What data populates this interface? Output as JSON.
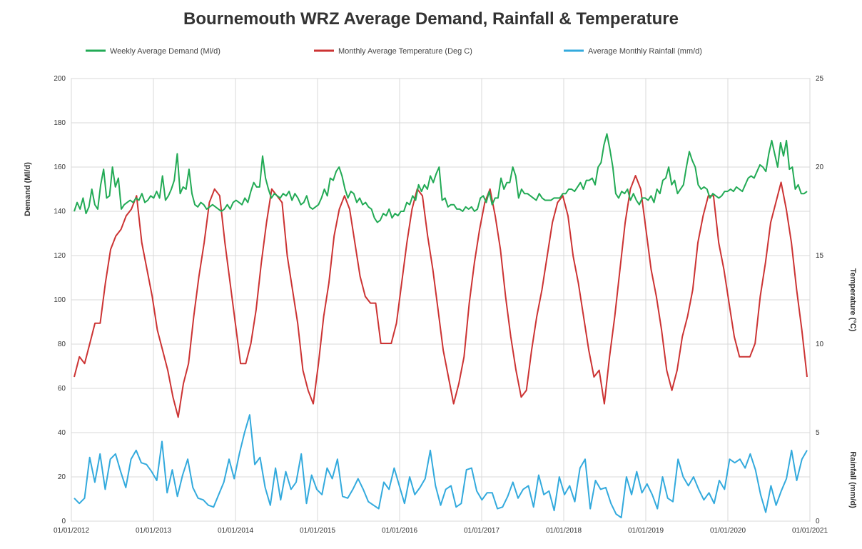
{
  "chart_data": {
    "type": "line",
    "title": "Bournemouth WRZ Average Demand, Rainfall & Temperature",
    "legend_position": "top",
    "grid": true,
    "x_ticks": [
      "01/01/2012",
      "01/01/2013",
      "01/01/2014",
      "01/01/2015",
      "01/01/2016",
      "01/01/2017",
      "01/01/2018",
      "01/01/2019",
      "01/01/2020",
      "01/01/2021"
    ],
    "y_left": {
      "label": "Demand (Ml/d)",
      "range": [
        0,
        200
      ],
      "ticks": [
        0,
        20,
        40,
        60,
        80,
        100,
        120,
        140,
        160,
        180,
        200
      ]
    },
    "y_right_temp": {
      "label": "Temperature (°C)",
      "range": [
        0,
        20
      ],
      "ticks": [
        5,
        10,
        15,
        20,
        25
      ]
    },
    "y_right_rain": {
      "label": "Rainfall (mm/d)",
      "range": [
        0,
        5
      ],
      "ticks": [
        0,
        5
      ]
    },
    "series": [
      {
        "name": "Weekly Average Demand (Ml/d)",
        "axis": "left",
        "color": "#22aa55",
        "values": [
          140,
          144,
          141,
          146,
          139,
          142,
          150,
          143,
          141,
          152,
          159,
          146,
          147,
          160,
          151,
          155,
          141,
          143,
          144,
          145,
          144,
          146,
          145,
          148,
          144,
          145,
          147,
          146,
          149,
          146,
          156,
          145,
          147,
          150,
          154,
          166,
          148,
          151,
          150,
          159,
          148,
          143,
          142,
          144,
          143,
          141,
          142,
          143,
          142,
          141,
          140,
          141,
          143,
          141,
          144,
          145,
          144,
          143,
          146,
          144,
          149,
          153,
          151,
          151,
          165,
          155,
          150,
          146,
          148,
          147,
          146,
          148,
          147,
          149,
          145,
          148,
          146,
          143,
          144,
          147,
          142,
          141,
          142,
          143,
          146,
          150,
          147,
          155,
          154,
          158,
          160,
          156,
          150,
          146,
          149,
          148,
          144,
          146,
          143,
          144,
          142,
          141,
          137,
          135,
          136,
          139,
          138,
          141,
          137,
          139,
          138,
          140,
          140,
          144,
          143,
          147,
          145,
          152,
          149,
          152,
          150,
          156,
          153,
          157,
          160,
          145,
          146,
          142,
          143,
          143,
          141,
          141,
          140,
          142,
          141,
          142,
          140,
          141,
          146,
          147,
          144,
          149,
          143,
          146,
          146,
          155,
          150,
          153,
          153,
          160,
          156,
          146,
          150,
          148,
          148,
          147,
          146,
          145,
          148,
          146,
          145,
          145,
          145,
          146,
          146,
          146,
          148,
          148,
          150,
          150,
          149,
          151,
          153,
          150,
          154,
          154,
          155,
          152,
          160,
          162,
          170,
          175,
          168,
          160,
          148,
          146,
          149,
          148,
          150,
          145,
          148,
          145,
          143,
          146,
          146,
          145,
          147,
          144,
          150,
          148,
          154,
          155,
          160,
          152,
          154,
          148,
          150,
          152,
          160,
          167,
          163,
          160,
          152,
          150,
          151,
          150,
          146,
          148,
          147,
          146,
          147,
          149,
          149,
          150,
          149,
          151,
          150,
          149,
          152,
          155,
          156,
          155,
          158,
          161,
          160,
          158,
          166,
          172,
          166,
          160,
          171,
          165,
          172,
          159,
          160,
          150,
          152,
          148,
          148,
          149
        ]
      },
      {
        "name": "Monthly Average Temperature (Deg C)",
        "axis": "right_temp",
        "color": "#cc3333",
        "values": [
          5.0,
          6.5,
          6.0,
          7.5,
          9.0,
          9.0,
          12.0,
          14.5,
          15.5,
          16.0,
          17.0,
          17.5,
          18.5,
          15.0,
          13.0,
          11.0,
          8.5,
          7.0,
          5.5,
          3.5,
          2.0,
          4.5,
          6.0,
          9.5,
          12.5,
          15.0,
          18.0,
          19.0,
          18.5,
          15.0,
          12.0,
          9.0,
          6.0,
          6.0,
          7.5,
          10.0,
          13.5,
          16.5,
          19.0,
          18.5,
          18.0,
          14.0,
          11.5,
          9.0,
          5.5,
          4.0,
          3.0,
          6.0,
          9.5,
          12.0,
          15.5,
          17.5,
          18.5,
          17.5,
          15.0,
          12.5,
          11.0,
          10.5,
          10.5,
          7.5,
          7.5,
          7.5,
          9.0,
          12.0,
          15.0,
          17.5,
          19.0,
          18.5,
          15.5,
          13.0,
          10.0,
          7.0,
          5.0,
          3.0,
          4.5,
          6.5,
          10.5,
          13.5,
          16.0,
          18.0,
          19.0,
          17.0,
          14.5,
          11.0,
          8.0,
          5.5,
          3.5,
          4.0,
          7.0,
          9.5,
          11.5,
          14.0,
          16.5,
          18.0,
          18.5,
          17.0,
          14.0,
          12.0,
          9.5,
          7.0,
          5.0,
          5.5,
          3.0,
          6.5,
          9.5,
          13.0,
          16.5,
          19.0,
          20.0,
          19.0,
          16.0,
          13.0,
          11.0,
          8.5,
          5.5,
          4.0,
          5.5,
          8.0,
          9.5,
          11.5,
          15.0,
          17.0,
          18.5,
          18.5,
          15.0,
          13.0,
          10.5,
          8.0,
          6.5,
          6.5,
          6.5,
          7.5,
          11.0,
          13.5,
          16.5,
          18.0,
          19.5,
          17.5,
          15.0,
          11.5,
          8.5,
          5.0
        ]
      },
      {
        "name": "Average Monthly Rainfall (mm/d)",
        "axis": "right_rain",
        "color": "#33aadd",
        "values": [
          1.3,
          1.0,
          1.3,
          3.6,
          2.2,
          3.8,
          1.8,
          3.5,
          3.8,
          2.8,
          1.9,
          3.5,
          4.0,
          3.3,
          3.2,
          2.8,
          2.3,
          4.5,
          1.6,
          2.9,
          1.4,
          2.6,
          3.5,
          1.9,
          1.3,
          1.2,
          0.9,
          0.8,
          1.5,
          2.2,
          3.5,
          2.4,
          3.8,
          5.0,
          6.0,
          3.2,
          3.6,
          1.9,
          0.9,
          3.0,
          1.2,
          2.8,
          1.8,
          2.2,
          3.8,
          1.0,
          2.6,
          1.8,
          1.5,
          3.0,
          2.4,
          3.5,
          1.4,
          1.3,
          1.8,
          2.4,
          1.8,
          1.1,
          0.9,
          0.7,
          2.2,
          1.8,
          3.0,
          2.0,
          1.0,
          2.5,
          1.5,
          1.9,
          2.4,
          4.0,
          2.0,
          0.9,
          1.8,
          2.0,
          0.8,
          1.0,
          2.9,
          3.0,
          1.7,
          1.2,
          1.6,
          1.6,
          0.7,
          0.8,
          1.4,
          2.2,
          1.3,
          1.8,
          2.0,
          0.8,
          2.6,
          1.5,
          1.7,
          0.6,
          2.5,
          1.5,
          2.0,
          1.1,
          3.0,
          3.5,
          0.7,
          2.3,
          1.8,
          1.9,
          1.0,
          0.4,
          0.2,
          2.5,
          1.5,
          2.8,
          1.6,
          2.1,
          1.5,
          0.7,
          2.5,
          1.3,
          1.1,
          3.5,
          2.5,
          2.0,
          2.5,
          1.8,
          1.2,
          1.6,
          1.0,
          2.3,
          1.8,
          3.5,
          3.3,
          3.5,
          3.0,
          3.8,
          2.9,
          1.5,
          0.5,
          2.0,
          0.9,
          1.7,
          2.4,
          4.0,
          2.3,
          3.5,
          4.0
        ]
      }
    ]
  }
}
